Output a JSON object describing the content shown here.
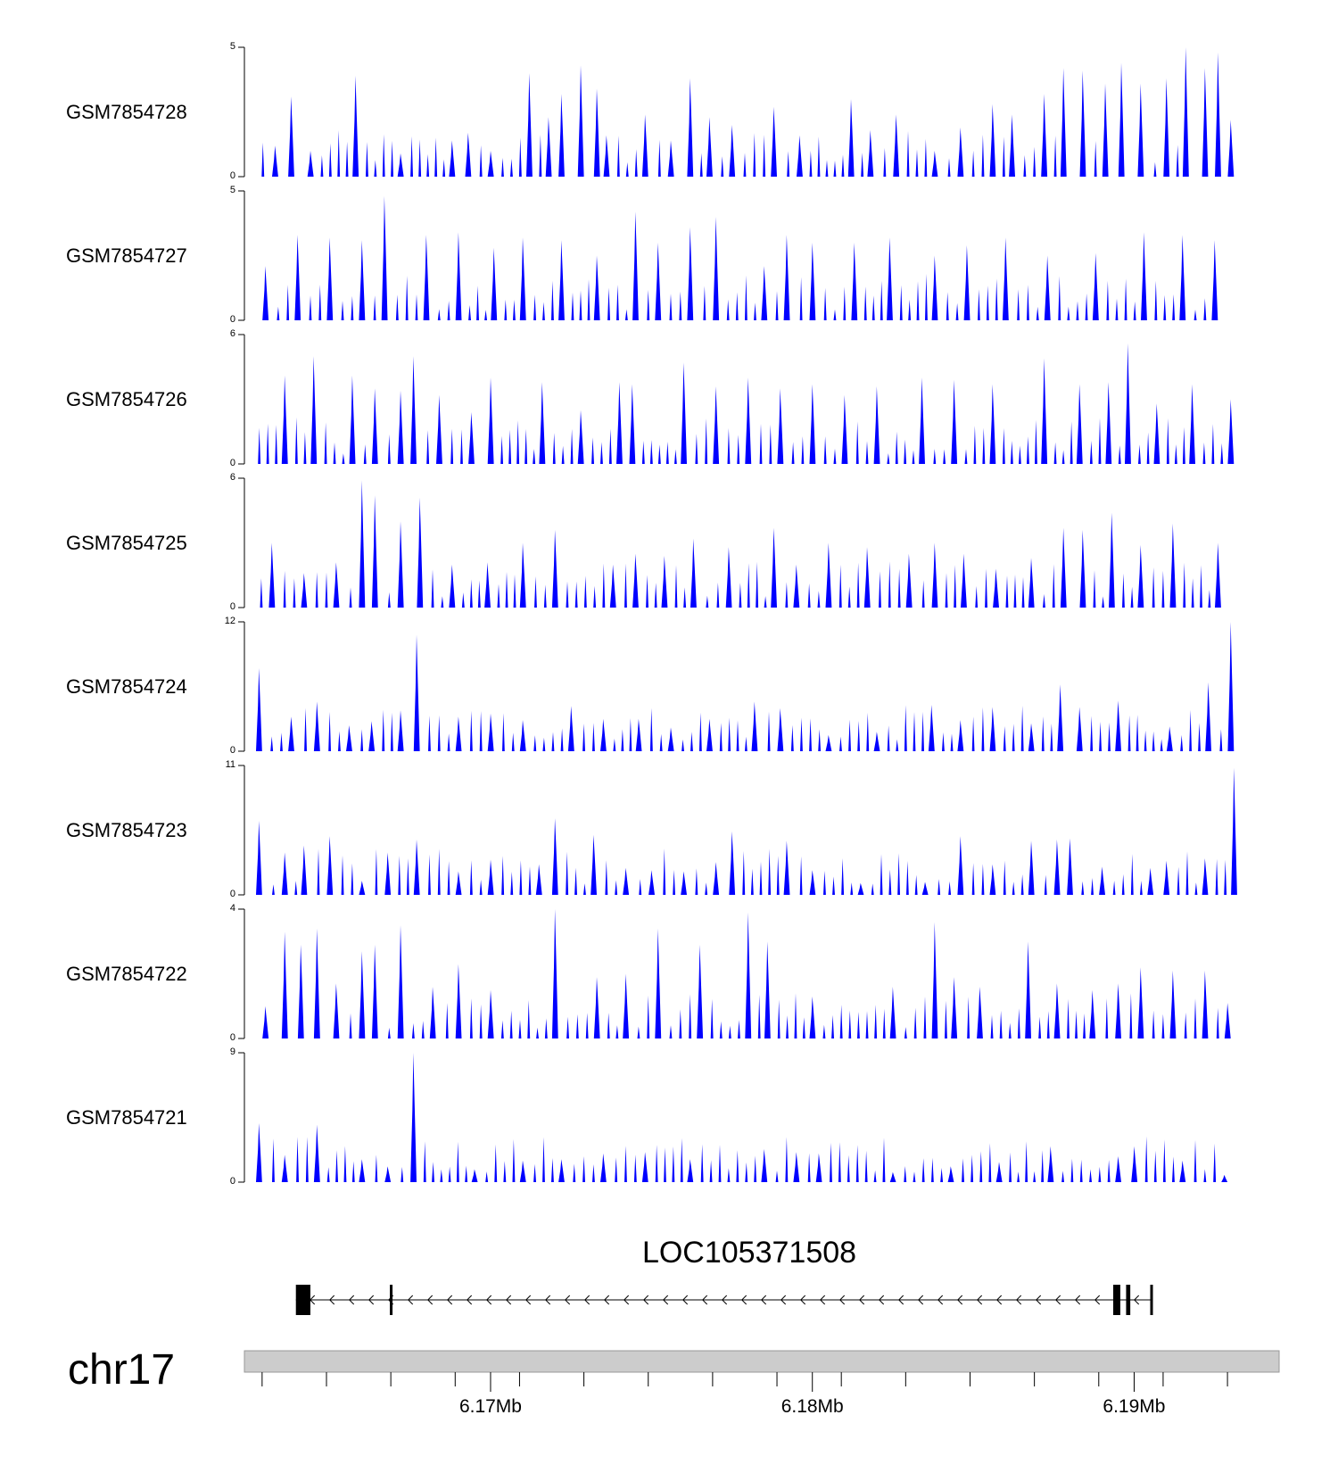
{
  "chart_data": {
    "type": "area",
    "title": "",
    "tracks": [
      {
        "name": "GSM7854728",
        "ylim": [
          0,
          5
        ],
        "tick_labels": [
          "0",
          "5"
        ],
        "peaks": [
          [
            6.1633,
            1.2
          ],
          [
            6.1638,
            3.1
          ],
          [
            6.1644,
            1.0
          ],
          [
            6.1658,
            3.9
          ],
          [
            6.1672,
            0.9
          ],
          [
            6.1688,
            1.4
          ],
          [
            6.1693,
            1.7
          ],
          [
            6.17,
            1.0
          ],
          [
            6.1712,
            4.0
          ],
          [
            6.1718,
            2.3
          ],
          [
            6.1722,
            3.2
          ],
          [
            6.1728,
            4.3
          ],
          [
            6.1733,
            3.4
          ],
          [
            6.1736,
            1.6
          ],
          [
            6.1748,
            2.4
          ],
          [
            6.1756,
            1.4
          ],
          [
            6.1762,
            3.8
          ],
          [
            6.1768,
            2.3
          ],
          [
            6.1775,
            2.0
          ],
          [
            6.1788,
            2.7
          ],
          [
            6.1796,
            1.6
          ],
          [
            6.1812,
            3.0
          ],
          [
            6.1818,
            1.8
          ],
          [
            6.1826,
            2.4
          ],
          [
            6.1838,
            1.0
          ],
          [
            6.1846,
            1.9
          ],
          [
            6.1856,
            2.8
          ],
          [
            6.1862,
            2.4
          ],
          [
            6.1872,
            3.2
          ],
          [
            6.1878,
            4.2
          ],
          [
            6.1884,
            4.1
          ],
          [
            6.1891,
            3.6
          ],
          [
            6.1896,
            4.4
          ],
          [
            6.1902,
            3.6
          ],
          [
            6.191,
            3.8
          ],
          [
            6.1916,
            5.0
          ],
          [
            6.1922,
            4.2
          ],
          [
            6.1926,
            4.8
          ],
          [
            6.193,
            2.2
          ]
        ]
      },
      {
        "name": "GSM7854727",
        "ylim": [
          0,
          5
        ],
        "tick_labels": [
          "0",
          "5"
        ],
        "peaks": [
          [
            6.163,
            2.1
          ],
          [
            6.164,
            3.3
          ],
          [
            6.165,
            3.2
          ],
          [
            6.166,
            3.1
          ],
          [
            6.1667,
            4.8
          ],
          [
            6.168,
            3.3
          ],
          [
            6.169,
            3.4
          ],
          [
            6.1701,
            2.8
          ],
          [
            6.171,
            3.2
          ],
          [
            6.1722,
            3.1
          ],
          [
            6.1733,
            2.5
          ],
          [
            6.1745,
            4.2
          ],
          [
            6.1752,
            3.0
          ],
          [
            6.1762,
            3.6
          ],
          [
            6.177,
            4.0
          ],
          [
            6.1785,
            2.1
          ],
          [
            6.1792,
            3.3
          ],
          [
            6.18,
            3.0
          ],
          [
            6.1813,
            3.0
          ],
          [
            6.1824,
            3.2
          ],
          [
            6.1838,
            2.5
          ],
          [
            6.1848,
            2.9
          ],
          [
            6.186,
            3.2
          ],
          [
            6.1873,
            2.5
          ],
          [
            6.1888,
            2.6
          ],
          [
            6.1903,
            3.4
          ],
          [
            6.1915,
            3.3
          ],
          [
            6.1925,
            3.1
          ]
        ]
      },
      {
        "name": "GSM7854726",
        "ylim": [
          0,
          6
        ],
        "tick_labels": [
          "0",
          "6"
        ],
        "peaks": [
          [
            6.1636,
            4.1
          ],
          [
            6.1645,
            5.0
          ],
          [
            6.1657,
            4.1
          ],
          [
            6.1664,
            3.5
          ],
          [
            6.1672,
            3.4
          ],
          [
            6.1676,
            5.0
          ],
          [
            6.1684,
            3.2
          ],
          [
            6.1694,
            2.4
          ],
          [
            6.17,
            4.0
          ],
          [
            6.1716,
            3.8
          ],
          [
            6.1728,
            2.5
          ],
          [
            6.174,
            3.8
          ],
          [
            6.1744,
            3.7
          ],
          [
            6.176,
            4.7
          ],
          [
            6.177,
            3.6
          ],
          [
            6.178,
            4.0
          ],
          [
            6.179,
            3.5
          ],
          [
            6.18,
            3.7
          ],
          [
            6.181,
            3.2
          ],
          [
            6.182,
            3.6
          ],
          [
            6.1834,
            4.0
          ],
          [
            6.1844,
            3.9
          ],
          [
            6.1856,
            3.7
          ],
          [
            6.1872,
            4.9
          ],
          [
            6.1883,
            3.7
          ],
          [
            6.1892,
            3.8
          ],
          [
            6.1898,
            5.6
          ],
          [
            6.1907,
            2.8
          ],
          [
            6.1918,
            3.7
          ],
          [
            6.193,
            3.0
          ]
        ]
      },
      {
        "name": "GSM7854725",
        "ylim": [
          0,
          6
        ],
        "tick_labels": [
          "0",
          "6"
        ],
        "peaks": [
          [
            6.1632,
            3.0
          ],
          [
            6.1642,
            1.6
          ],
          [
            6.1652,
            2.1
          ],
          [
            6.166,
            5.9
          ],
          [
            6.1664,
            5.2
          ],
          [
            6.1672,
            4.0
          ],
          [
            6.1678,
            5.1
          ],
          [
            6.1688,
            2.0
          ],
          [
            6.1699,
            2.1
          ],
          [
            6.171,
            3.0
          ],
          [
            6.172,
            3.6
          ],
          [
            6.1738,
            2.0
          ],
          [
            6.1745,
            2.5
          ],
          [
            6.1754,
            2.4
          ],
          [
            6.1763,
            3.2
          ],
          [
            6.1774,
            2.8
          ],
          [
            6.1788,
            3.7
          ],
          [
            6.1795,
            2.0
          ],
          [
            6.1805,
            3.0
          ],
          [
            6.1817,
            2.8
          ],
          [
            6.183,
            2.5
          ],
          [
            6.1838,
            3.0
          ],
          [
            6.1847,
            2.5
          ],
          [
            6.1857,
            1.8
          ],
          [
            6.1868,
            2.3
          ],
          [
            6.1878,
            3.7
          ],
          [
            6.1884,
            3.6
          ],
          [
            6.1893,
            4.4
          ],
          [
            6.1902,
            2.9
          ],
          [
            6.1912,
            3.9
          ],
          [
            6.1926,
            3.0
          ]
        ]
      },
      {
        "name": "GSM7854724",
        "ylim": [
          0,
          12
        ],
        "tick_labels": [
          "0",
          "12"
        ],
        "peaks": [
          [
            6.1628,
            7.7
          ],
          [
            6.1638,
            3.2
          ],
          [
            6.1646,
            4.6
          ],
          [
            6.1656,
            2.4
          ],
          [
            6.1663,
            2.8
          ],
          [
            6.1672,
            3.8
          ],
          [
            6.1677,
            10.8
          ],
          [
            6.169,
            3.2
          ],
          [
            6.17,
            3.5
          ],
          [
            6.171,
            2.9
          ],
          [
            6.1725,
            4.2
          ],
          [
            6.1735,
            3.0
          ],
          [
            6.1746,
            3.0
          ],
          [
            6.1756,
            2.2
          ],
          [
            6.1768,
            3.0
          ],
          [
            6.1782,
            4.6
          ],
          [
            6.179,
            4.0
          ],
          [
            6.1805,
            1.5
          ],
          [
            6.182,
            1.8
          ],
          [
            6.1837,
            4.3
          ],
          [
            6.1846,
            2.9
          ],
          [
            6.1856,
            4.1
          ],
          [
            6.1868,
            2.6
          ],
          [
            6.1877,
            6.2
          ],
          [
            6.1883,
            4.1
          ],
          [
            6.1895,
            4.7
          ],
          [
            6.1911,
            2.3
          ],
          [
            6.1923,
            6.4
          ],
          [
            6.193,
            12.0
          ]
        ]
      },
      {
        "name": "GSM7854723",
        "ylim": [
          0,
          11
        ],
        "tick_labels": [
          "0",
          "11"
        ],
        "peaks": [
          [
            6.1628,
            6.3
          ],
          [
            6.1636,
            3.6
          ],
          [
            6.1642,
            4.2
          ],
          [
            6.165,
            5.0
          ],
          [
            6.166,
            1.2
          ],
          [
            6.1668,
            3.6
          ],
          [
            6.1677,
            4.7
          ],
          [
            6.169,
            2.0
          ],
          [
            6.17,
            3.0
          ],
          [
            6.1715,
            2.6
          ],
          [
            6.172,
            6.5
          ],
          [
            6.1732,
            5.1
          ],
          [
            6.1742,
            2.3
          ],
          [
            6.175,
            2.1
          ],
          [
            6.176,
            2.0
          ],
          [
            6.177,
            2.8
          ],
          [
            6.1775,
            5.4
          ],
          [
            6.1792,
            4.6
          ],
          [
            6.18,
            2.1
          ],
          [
            6.1815,
            1.0
          ],
          [
            6.1835,
            1.1
          ],
          [
            6.1846,
            5.0
          ],
          [
            6.1856,
            2.6
          ],
          [
            6.1868,
            4.6
          ],
          [
            6.1876,
            4.7
          ],
          [
            6.188,
            4.8
          ],
          [
            6.189,
            2.4
          ],
          [
            6.1905,
            2.3
          ],
          [
            6.191,
            2.9
          ],
          [
            6.1922,
            3.1
          ],
          [
            6.1931,
            10.8
          ]
        ]
      },
      {
        "name": "GSM7854722",
        "ylim": [
          0,
          4
        ],
        "tick_labels": [
          "0",
          "4"
        ],
        "peaks": [
          [
            6.163,
            1.0
          ],
          [
            6.1636,
            3.3
          ],
          [
            6.1641,
            2.9
          ],
          [
            6.1646,
            3.4
          ],
          [
            6.1652,
            1.7
          ],
          [
            6.166,
            2.7
          ],
          [
            6.1664,
            2.9
          ],
          [
            6.1672,
            3.5
          ],
          [
            6.1682,
            1.6
          ],
          [
            6.169,
            2.3
          ],
          [
            6.17,
            1.5
          ],
          [
            6.172,
            4.0
          ],
          [
            6.1733,
            1.9
          ],
          [
            6.1742,
            2.0
          ],
          [
            6.1752,
            3.4
          ],
          [
            6.1765,
            2.9
          ],
          [
            6.178,
            3.9
          ],
          [
            6.1786,
            3.0
          ],
          [
            6.18,
            1.3
          ],
          [
            6.1825,
            1.6
          ],
          [
            6.1838,
            3.6
          ],
          [
            6.1844,
            1.9
          ],
          [
            6.1852,
            1.6
          ],
          [
            6.1867,
            3.0
          ],
          [
            6.1876,
            1.7
          ],
          [
            6.1887,
            1.5
          ],
          [
            6.1895,
            1.7
          ],
          [
            6.1902,
            2.2
          ],
          [
            6.1912,
            2.1
          ],
          [
            6.1922,
            2.1
          ],
          [
            6.1929,
            1.1
          ]
        ]
      },
      {
        "name": "GSM7854721",
        "ylim": [
          0,
          9
        ],
        "tick_labels": [
          "0",
          "9"
        ],
        "peaks": [
          [
            6.1628,
            4.1
          ],
          [
            6.1636,
            1.9
          ],
          [
            6.1646,
            4.0
          ],
          [
            6.166,
            1.6
          ],
          [
            6.1668,
            1.1
          ],
          [
            6.1676,
            9.0
          ],
          [
            6.1695,
            0.9
          ],
          [
            6.171,
            1.5
          ],
          [
            6.1722,
            1.6
          ],
          [
            6.1735,
            2.0
          ],
          [
            6.1748,
            2.1
          ],
          [
            6.1762,
            1.6
          ],
          [
            6.1785,
            2.3
          ],
          [
            6.1795,
            2.1
          ],
          [
            6.1802,
            2.0
          ],
          [
            6.1825,
            0.7
          ],
          [
            6.1843,
            1.1
          ],
          [
            6.1858,
            1.4
          ],
          [
            6.1874,
            2.5
          ],
          [
            6.1895,
            1.8
          ],
          [
            6.19,
            2.5
          ],
          [
            6.1915,
            1.5
          ],
          [
            6.1928,
            0.5
          ]
        ]
      }
    ],
    "gene": {
      "label": "LOC105371508",
      "strand": "-",
      "exons_mb": [
        [
          6.16395,
          6.1644
        ],
        [
          6.16687,
          6.16694
        ],
        [
          6.18935,
          6.18957
        ],
        [
          6.18975,
          6.18988
        ],
        [
          6.1905,
          6.19057
        ]
      ]
    },
    "ideogram": {
      "chrom": "chr17"
    },
    "x_axis": {
      "xlim_mb": [
        6.16235,
        6.19445
      ],
      "major_ticks_mb": [
        6.17,
        6.18,
        6.19
      ],
      "major_tick_labels": [
        "6.17Mb",
        "6.18Mb",
        "6.19Mb"
      ],
      "minor_ticks_mb": [
        6.1629,
        6.1649,
        6.1669,
        6.1689,
        6.1709,
        6.1729,
        6.1749,
        6.1769,
        6.1789,
        6.1809,
        6.1829,
        6.1849,
        6.1869,
        6.1889,
        6.1909,
        6.1929
      ]
    }
  },
  "colors": {
    "signal": "#0000ff",
    "ideogram": "#cccccc",
    "axis": "#000000"
  }
}
